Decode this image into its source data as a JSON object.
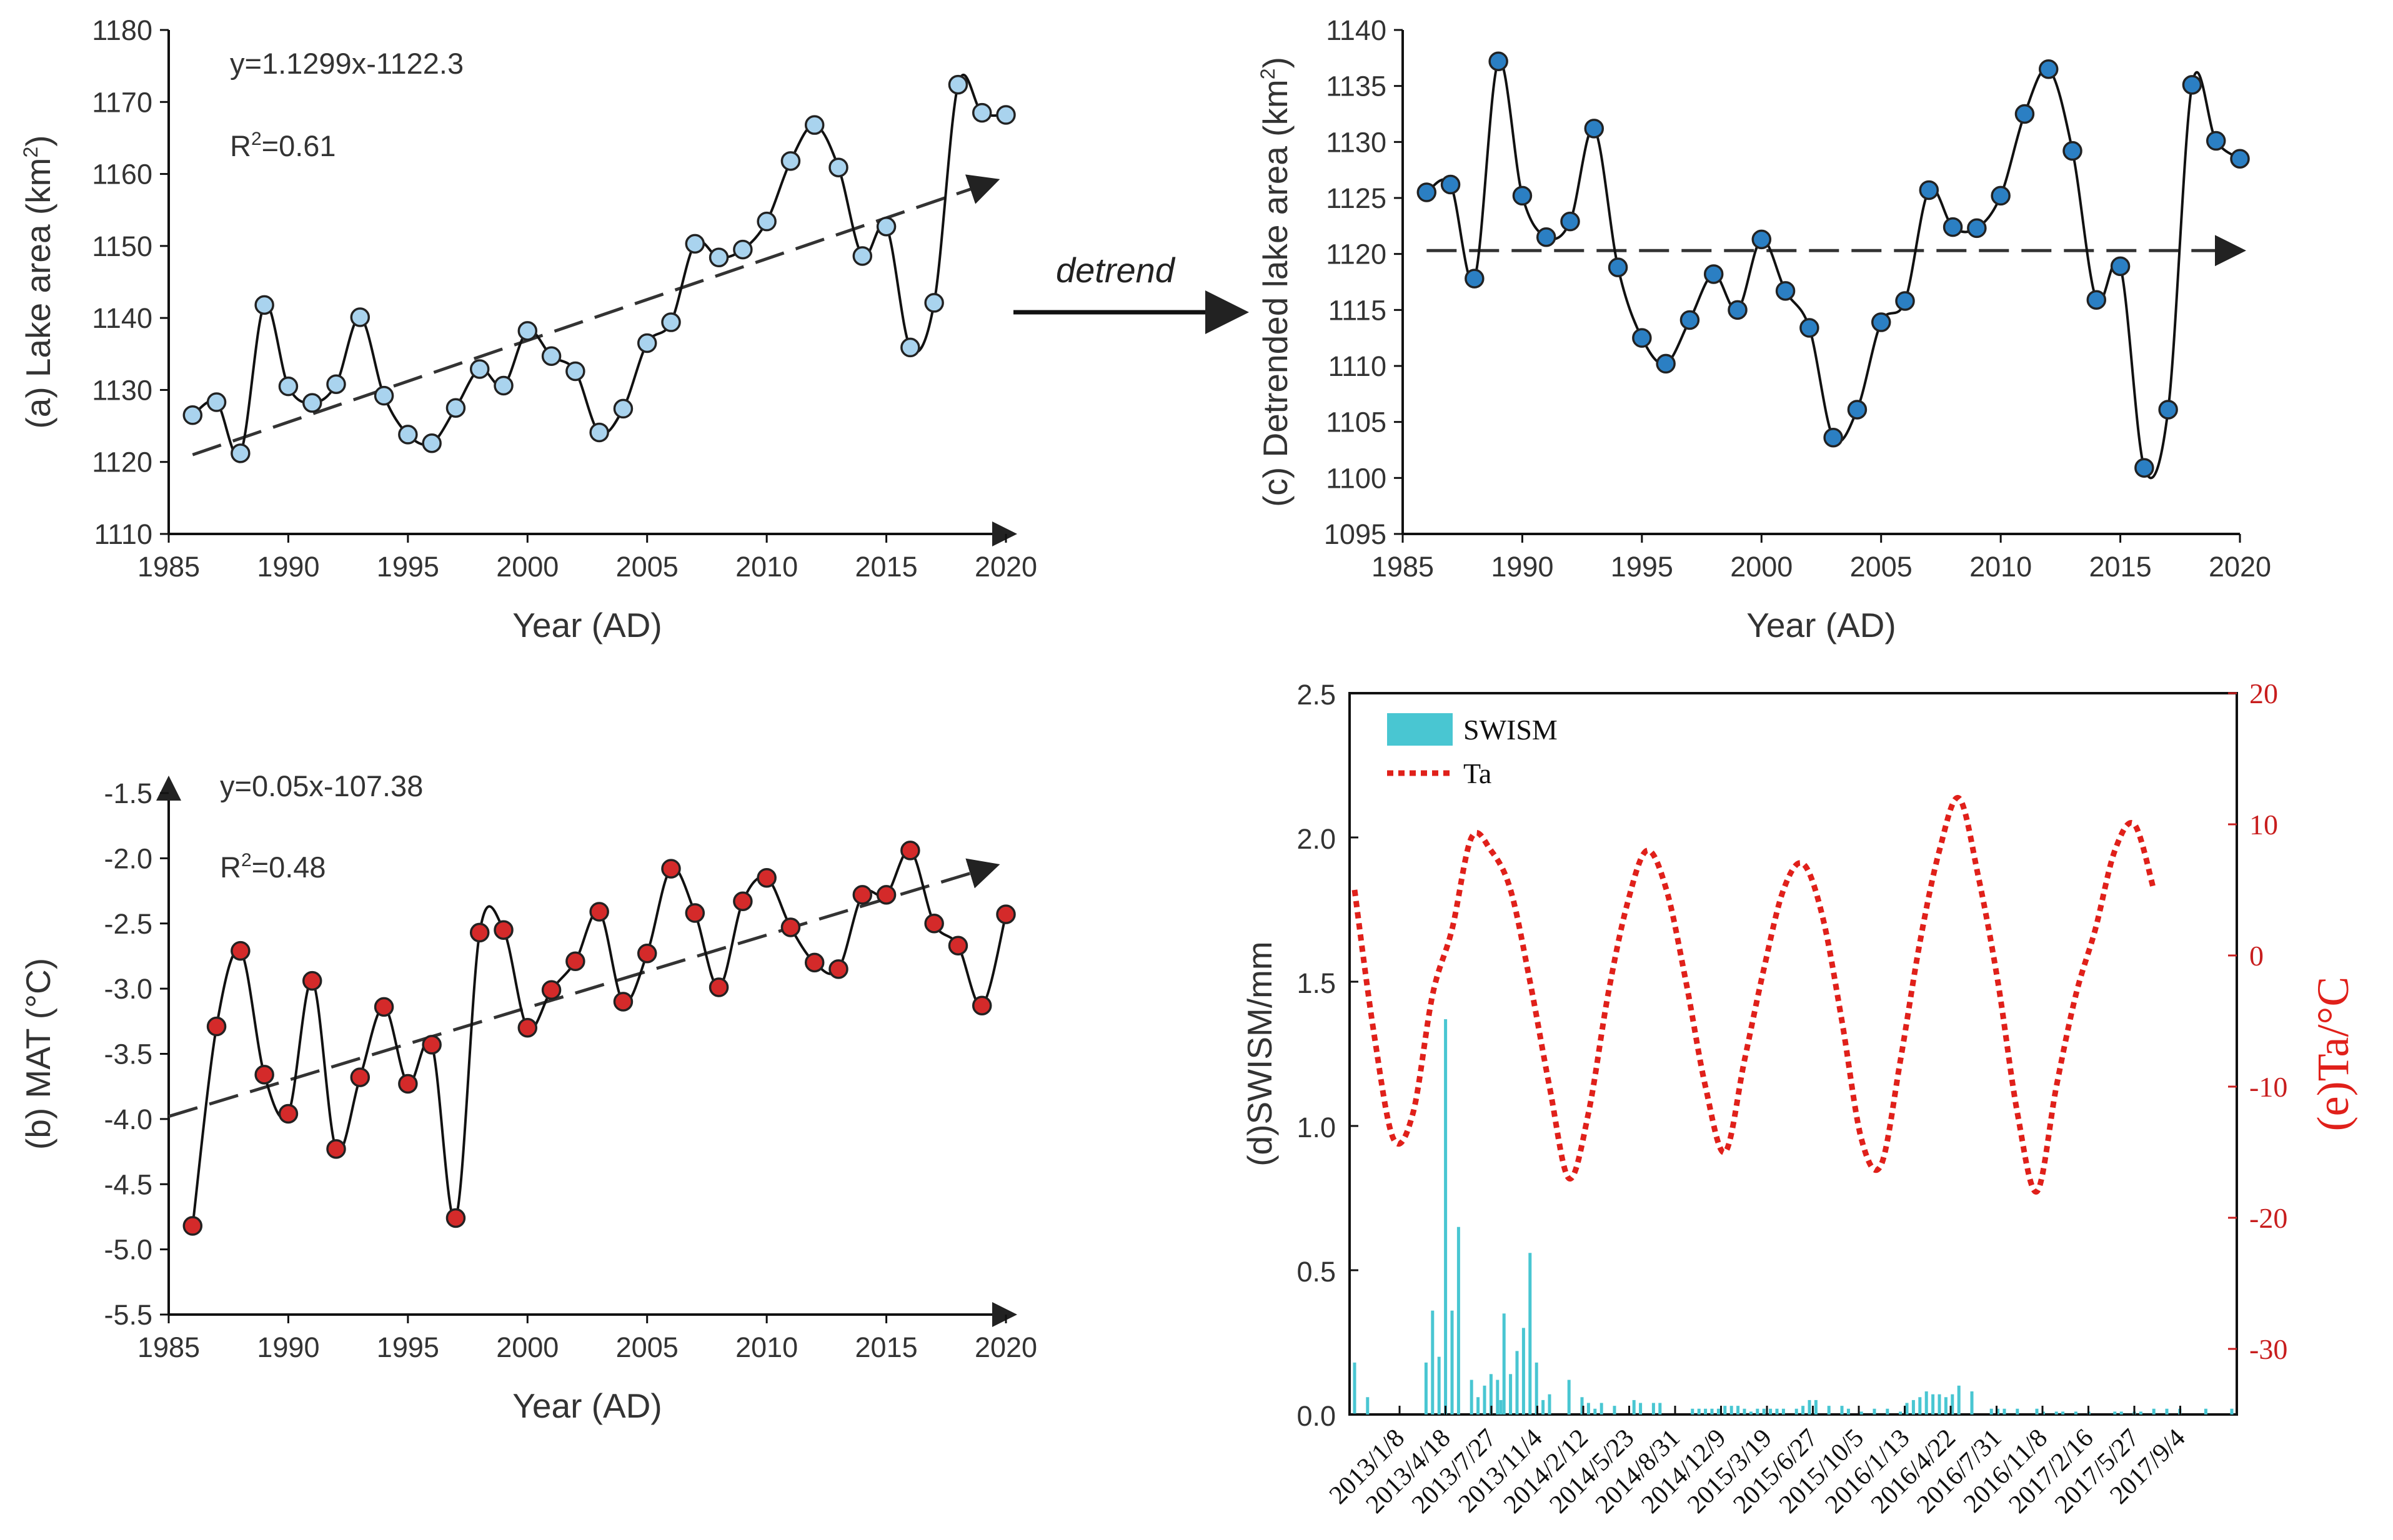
{
  "chart_data": [
    {
      "id": "a",
      "type": "line",
      "ylabel_prefix": "(a) Lake area (km",
      "ylabel_sup": "2",
      "ylabel_suffix": ")",
      "xlabel": "Year (AD)",
      "equation": "y=1.1299x-1122.3",
      "r2_prefix": "R",
      "r2_sup": "2",
      "r2_suffix": "=0.61",
      "xlim": [
        1985,
        2020
      ],
      "ylim": [
        1110,
        1180
      ],
      "xticks": [
        1985,
        1990,
        1995,
        2000,
        2005,
        2010,
        2015,
        2020
      ],
      "yticks": [
        1110,
        1120,
        1130,
        1140,
        1150,
        1160,
        1170,
        1180
      ],
      "marker_color": "#a9d3ee",
      "trend": {
        "x": [
          1986,
          2019.5
        ],
        "y": [
          1121,
          1159
        ]
      },
      "x": [
        1986,
        1987,
        1988,
        1989,
        1990,
        1991,
        1992,
        1993,
        1994,
        1995,
        1996,
        1997,
        1998,
        1999,
        2000,
        2001,
        2002,
        2003,
        2004,
        2005,
        2006,
        2007,
        2008,
        2009,
        2010,
        2011,
        2012,
        2013,
        2014,
        2015,
        2016,
        2017,
        2018,
        2019,
        2020
      ],
      "y": [
        1126.5,
        1128.3,
        1121.2,
        1141.8,
        1130.5,
        1128.2,
        1130.8,
        1140.1,
        1129.2,
        1123.8,
        1122.6,
        1127.5,
        1132.9,
        1130.6,
        1138.2,
        1134.7,
        1132.6,
        1124.1,
        1127.4,
        1136.5,
        1139.4,
        1150.3,
        1148.4,
        1149.5,
        1153.4,
        1161.8,
        1166.8,
        1160.9,
        1148.6,
        1152.7,
        1135.9,
        1142.1,
        1172.4,
        1168.5,
        1168.2
      ]
    },
    {
      "id": "c",
      "type": "line",
      "ylabel_prefix": "(c) Detrended lake area (km",
      "ylabel_sup": "2",
      "ylabel_suffix": ")",
      "xlabel": "Year (AD)",
      "xlim": [
        1985,
        2020
      ],
      "ylim": [
        1095,
        1140
      ],
      "xticks": [
        1985,
        1990,
        1995,
        2000,
        2005,
        2010,
        2015,
        2020
      ],
      "yticks": [
        1095,
        1100,
        1105,
        1110,
        1115,
        1120,
        1125,
        1130,
        1135,
        1140
      ],
      "marker_color": "#2b7fc3",
      "trend": {
        "x": [
          1986,
          2020
        ],
        "y": [
          1120.3,
          1120.3
        ]
      },
      "x": [
        1986,
        1987,
        1988,
        1989,
        1990,
        1991,
        1992,
        1993,
        1994,
        1995,
        1996,
        1997,
        1998,
        1999,
        2000,
        2001,
        2002,
        2003,
        2004,
        2005,
        2006,
        2007,
        2008,
        2009,
        2010,
        2011,
        2012,
        2013,
        2014,
        2015,
        2016,
        2017,
        2018,
        2019,
        2020
      ],
      "y": [
        1125.5,
        1126.2,
        1117.8,
        1137.2,
        1125.2,
        1121.5,
        1122.9,
        1131.2,
        1118.8,
        1112.5,
        1110.2,
        1114.1,
        1118.2,
        1115,
        1121.3,
        1116.7,
        1113.4,
        1103.6,
        1106.1,
        1113.9,
        1115.8,
        1125.7,
        1122.4,
        1122.3,
        1125.2,
        1132.5,
        1136.5,
        1129.2,
        1115.9,
        1118.9,
        1100.9,
        1106.1,
        1135.1,
        1130.1,
        1128.5
      ]
    },
    {
      "id": "b",
      "type": "line",
      "ylabel": "(b) MAT (°C)",
      "xlabel": "Year (AD)",
      "equation": "y=0.05x-107.38",
      "r2_prefix": "R",
      "r2_sup": "2",
      "r2_suffix": "=0.48",
      "xlim": [
        1985,
        2020
      ],
      "ylim": [
        -5.5,
        -1.5
      ],
      "xticks": [
        1985,
        1990,
        1995,
        2000,
        2005,
        2010,
        2015,
        2020
      ],
      "yticks": [
        -5.5,
        -5.0,
        -4.5,
        -4.0,
        -3.5,
        -3.0,
        -2.5,
        -2.0,
        -1.5
      ],
      "ytick_labels": [
        "-5.5",
        "-5.0",
        "-4.5",
        "-4.0",
        "-3.5",
        "-3.0",
        "-2.5",
        "-2.0",
        "-1.5"
      ],
      "marker_color": "#d42a2a",
      "trend": {
        "x": [
          1985,
          2019.5
        ],
        "y": [
          -3.98,
          -2.06
        ]
      },
      "x": [
        1986,
        1987,
        1988,
        1989,
        1990,
        1991,
        1992,
        1993,
        1994,
        1995,
        1996,
        1997,
        1998,
        1999,
        2000,
        2001,
        2002,
        2003,
        2004,
        2005,
        2006,
        2007,
        2008,
        2009,
        2010,
        2011,
        2012,
        2013,
        2014,
        2015,
        2016,
        2017,
        2018,
        2019,
        2020
      ],
      "y": [
        -4.82,
        -3.29,
        -2.71,
        -3.66,
        -3.96,
        -2.94,
        -4.23,
        -3.68,
        -3.14,
        -3.73,
        -3.43,
        -4.76,
        -2.57,
        -2.55,
        -3.3,
        -3.01,
        -2.79,
        -2.41,
        -3.1,
        -2.73,
        -2.08,
        -2.42,
        -2.99,
        -2.33,
        -2.15,
        -2.53,
        -2.8,
        -2.85,
        -2.28,
        -2.28,
        -1.94,
        -2.5,
        -2.67,
        -3.13,
        -2.43
      ]
    },
    {
      "id": "d",
      "type": "bar",
      "ylabel": "(d)SWISM/mm",
      "y2label": "(e)Ta/°C",
      "ylim": [
        0,
        2.5
      ],
      "y2lim": [
        -35,
        20
      ],
      "yticks": [
        "0.0",
        "0.5",
        "1.0",
        "1.5",
        "2.0",
        "2.5"
      ],
      "y2ticks": [
        "-30",
        "-20",
        "-10",
        "0",
        "10",
        "20"
      ],
      "legend": [
        "SWISM",
        "Ta"
      ],
      "legend_position": "top-left",
      "bar_color": "#49c6d2",
      "line_color": "#e0201a",
      "categories": [
        "2013/1/8",
        "2013/4/18",
        "2013/7/27",
        "2013/11/4",
        "2014/2/12",
        "2014/5/23",
        "2014/8/31",
        "2014/12/9",
        "2015/3/19",
        "2015/6/27",
        "2015/10/5",
        "2016/1/13",
        "2016/4/22",
        "2016/7/31",
        "2016/11/8",
        "2017/2/16",
        "2017/5/27",
        "2017/9/4"
      ],
      "swism_days": [
        0,
        2,
        11,
        12,
        13,
        14,
        15,
        16,
        18,
        19,
        20,
        21,
        22,
        22.5,
        23,
        24,
        25,
        26,
        27,
        28,
        29,
        30,
        33,
        35,
        36,
        37,
        38,
        40,
        43,
        44,
        46,
        47,
        52,
        53,
        54,
        55,
        56,
        57,
        58,
        59,
        60,
        61,
        62,
        63,
        64,
        65,
        66,
        68,
        69,
        70,
        71,
        73,
        75,
        76,
        78,
        80,
        82,
        84,
        85,
        86,
        87,
        88,
        89,
        90,
        91,
        92,
        93,
        95,
        98,
        99,
        100,
        102,
        105,
        106,
        108,
        109,
        111,
        113,
        117,
        118,
        120,
        121,
        123,
        125,
        127,
        131,
        135
      ],
      "swism_mm": [
        0.18,
        0.06,
        0.18,
        0.36,
        0.2,
        1.37,
        0.36,
        0.65,
        0.12,
        0.06,
        0.1,
        0.14,
        0.12,
        0.05,
        0.35,
        0.14,
        0.22,
        0.3,
        0.56,
        0.18,
        0.05,
        0.07,
        0.12,
        0.06,
        0.04,
        0.02,
        0.04,
        0.03,
        0.05,
        0.04,
        0.04,
        0.04,
        0.02,
        0.02,
        0.02,
        0.02,
        0.02,
        0.03,
        0.03,
        0.03,
        0.02,
        0.01,
        0.02,
        0.02,
        0.02,
        0.02,
        0.02,
        0.02,
        0.03,
        0.05,
        0.05,
        0.03,
        0.03,
        0.02,
        0.01,
        0.02,
        0.02,
        0.01,
        0.04,
        0.05,
        0.06,
        0.08,
        0.07,
        0.07,
        0.06,
        0.07,
        0.1,
        0.08,
        0.02,
        0.02,
        0.02,
        0.02,
        0.02,
        0.01,
        0.01,
        0.01,
        0.01,
        0.01,
        0.01,
        0.01,
        0.01,
        0.01,
        0.02,
        0.02,
        0.02,
        0.02,
        0.02
      ],
      "ta_series": [
        [
          0,
          5
        ],
        [
          3,
          -6
        ],
        [
          6,
          -14
        ],
        [
          9,
          -12
        ],
        [
          12,
          -3
        ],
        [
          15,
          2
        ],
        [
          18,
          9
        ],
        [
          21,
          8
        ],
        [
          24,
          5
        ],
        [
          27,
          -2
        ],
        [
          30,
          -10
        ],
        [
          33,
          -17
        ],
        [
          36,
          -12
        ],
        [
          39,
          -3
        ],
        [
          42,
          4
        ],
        [
          45,
          8
        ],
        [
          48,
          5
        ],
        [
          51,
          -2
        ],
        [
          54,
          -10
        ],
        [
          57,
          -15
        ],
        [
          60,
          -8
        ],
        [
          63,
          -1
        ],
        [
          66,
          5
        ],
        [
          69,
          7
        ],
        [
          72,
          3
        ],
        [
          75,
          -5
        ],
        [
          78,
          -14
        ],
        [
          81,
          -16
        ],
        [
          84,
          -8
        ],
        [
          87,
          1
        ],
        [
          90,
          8
        ],
        [
          93,
          12
        ],
        [
          96,
          6
        ],
        [
          99,
          -2
        ],
        [
          102,
          -12
        ],
        [
          105,
          -18
        ],
        [
          108,
          -10
        ],
        [
          111,
          -3
        ],
        [
          114,
          2
        ],
        [
          117,
          8
        ],
        [
          120,
          10
        ],
        [
          123,
          5
        ]
      ]
    }
  ],
  "annotation": {
    "detrend_label": "detrend"
  }
}
